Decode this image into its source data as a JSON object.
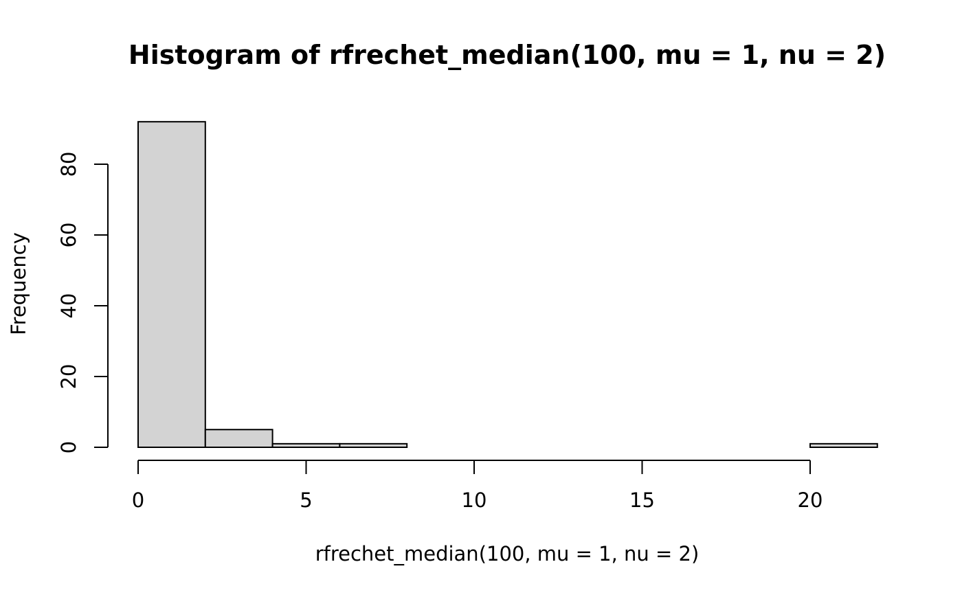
{
  "chart_data": {
    "type": "bar",
    "subtype": "histogram",
    "title": "Histogram of rfrechet_median(100, mu = 1, nu = 2)",
    "xlabel": "rfrechet_median(100, mu = 1, nu = 2)",
    "ylabel": "Frequency",
    "bins": [
      {
        "x0": 0,
        "x1": 2,
        "count": 92
      },
      {
        "x0": 2,
        "x1": 4,
        "count": 5
      },
      {
        "x0": 4,
        "x1": 6,
        "count": 1
      },
      {
        "x0": 6,
        "x1": 8,
        "count": 1
      },
      {
        "x0": 8,
        "x1": 10,
        "count": 0
      },
      {
        "x0": 10,
        "x1": 12,
        "count": 0
      },
      {
        "x0": 12,
        "x1": 14,
        "count": 0
      },
      {
        "x0": 14,
        "x1": 16,
        "count": 0
      },
      {
        "x0": 16,
        "x1": 18,
        "count": 0
      },
      {
        "x0": 18,
        "x1": 20,
        "count": 0
      },
      {
        "x0": 20,
        "x1": 22,
        "count": 1
      }
    ],
    "xticks": [
      "0",
      "5",
      "10",
      "15",
      "20"
    ],
    "yticks": [
      "0",
      "20",
      "40",
      "60",
      "80"
    ],
    "xlim": [
      0,
      22
    ],
    "ylim": [
      0,
      92
    ],
    "grid": false,
    "legend": "none",
    "colors": {
      "bar_fill": "#d3d3d3",
      "bar_stroke": "#000000",
      "axis": "#000000"
    }
  }
}
